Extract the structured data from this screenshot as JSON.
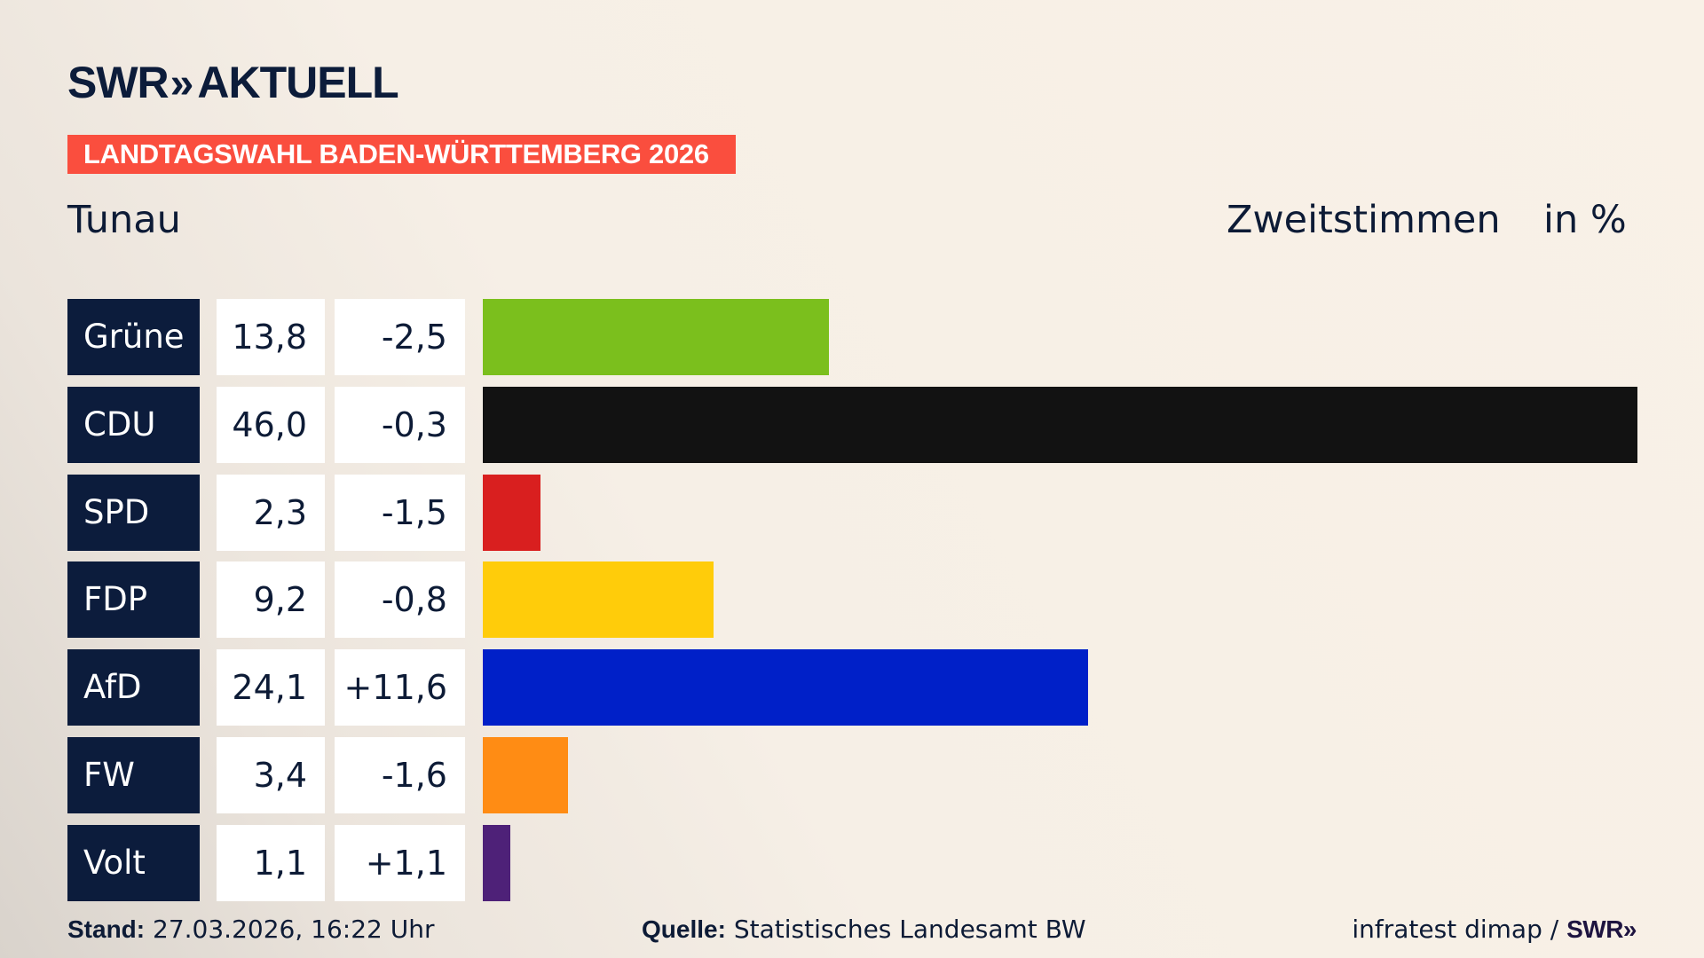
{
  "header": {
    "logo_text": "SWR",
    "logo_chevrons": "»",
    "logo_suffix": "AKTUELL",
    "banner": "LANDTAGSWAHL BADEN-WÜRTTEMBERG 2026",
    "region": "Tunau",
    "measure": "Zweitstimmen",
    "unit": "in %"
  },
  "chart_data": {
    "type": "bar",
    "orientation": "horizontal",
    "categories": [
      "Grüne",
      "CDU",
      "SPD",
      "FDP",
      "AfD",
      "FW",
      "Volt"
    ],
    "values": [
      13.8,
      46.0,
      2.3,
      9.2,
      24.1,
      3.4,
      1.1
    ],
    "value_labels": [
      "13,8",
      "46,0",
      "2,3",
      "9,2",
      "24,1",
      "3,4",
      "1,1"
    ],
    "diffs": [
      -2.5,
      -0.3,
      -1.5,
      -0.8,
      11.6,
      -1.6,
      1.1
    ],
    "diff_labels": [
      "-2,5",
      "-0,3",
      "-1,5",
      "-0,8",
      "+11,6",
      "-1,6",
      "+1,1"
    ],
    "colors": [
      "#7bbf1d",
      "#121212",
      "#d91f1f",
      "#ffcc0a",
      "#0020c8",
      "#ff8c14",
      "#4e2178"
    ],
    "xlim": [
      0,
      46.0
    ],
    "grid": false
  },
  "footer": {
    "stand_label": "Stand:",
    "stand_value": "27.03.2026, 16:22 Uhr",
    "source_label": "Quelle:",
    "source_value": "Statistisches Landesamt BW",
    "credit": "infratest dimap /",
    "credit_logo": "SWR»"
  }
}
